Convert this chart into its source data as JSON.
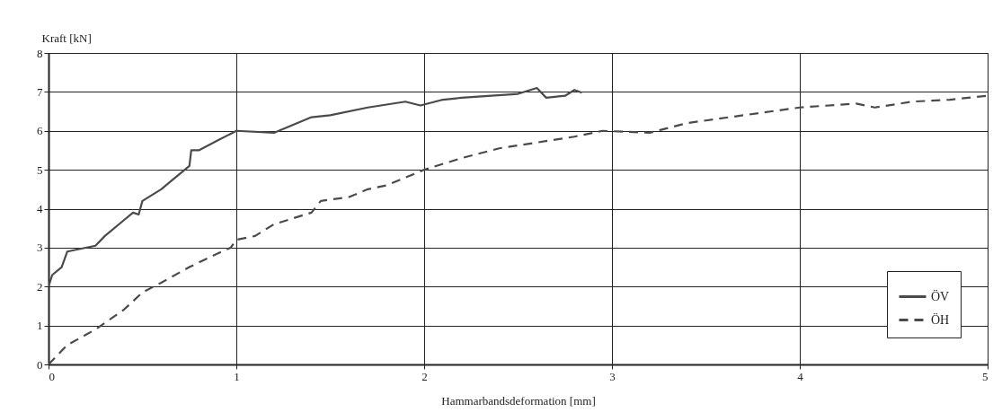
{
  "chart_data": {
    "type": "line",
    "xlabel": "Hammarbandsdeformation [mm]",
    "ylabel": "Kraft [kN]",
    "xlim": [
      0,
      5
    ],
    "xticks": [
      0,
      1,
      2,
      3,
      4,
      5
    ],
    "ylim": [
      0,
      8
    ],
    "yticks": [
      0,
      1,
      2,
      3,
      4,
      5,
      6,
      7,
      8
    ],
    "grid": true,
    "legend": "bottom right",
    "series": [
      {
        "name": "ÖV",
        "color": "#4a4a4a",
        "line_style": "solid",
        "x": [
          0,
          0.02,
          0.07,
          0.1,
          0.25,
          0.3,
          0.4,
          0.45,
          0.48,
          0.5,
          0.6,
          0.65,
          0.75,
          0.76,
          0.8,
          0.9,
          1.0,
          1.2,
          1.3,
          1.4,
          1.5,
          1.7,
          1.9,
          1.98,
          2.1,
          2.2,
          2.5,
          2.6,
          2.65,
          2.75,
          2.8,
          2.84
        ],
        "values": [
          2.0,
          2.3,
          2.5,
          2.9,
          3.05,
          3.3,
          3.7,
          3.9,
          3.85,
          4.2,
          4.5,
          4.7,
          5.1,
          5.5,
          5.5,
          5.75,
          6.0,
          5.95,
          6.15,
          6.35,
          6.4,
          6.6,
          6.75,
          6.65,
          6.8,
          6.85,
          6.95,
          7.1,
          6.85,
          6.9,
          7.05,
          6.98
        ]
      },
      {
        "name": "ÖH",
        "color": "#4a4a4a",
        "line_style": "dashed",
        "x": [
          0,
          0.1,
          0.25,
          0.4,
          0.5,
          0.6,
          0.75,
          0.9,
          0.97,
          1.0,
          1.1,
          1.2,
          1.4,
          1.45,
          1.6,
          1.7,
          1.8,
          2.0,
          2.2,
          2.4,
          2.6,
          2.8,
          2.95,
          3.2,
          3.4,
          3.7,
          4.0,
          4.3,
          4.4,
          4.6,
          4.8,
          5.0
        ],
        "values": [
          0,
          0.5,
          0.9,
          1.4,
          1.85,
          2.1,
          2.5,
          2.85,
          3.0,
          3.2,
          3.3,
          3.6,
          3.9,
          4.2,
          4.3,
          4.5,
          4.6,
          5.0,
          5.3,
          5.55,
          5.7,
          5.85,
          6.0,
          5.95,
          6.2,
          6.4,
          6.6,
          6.7,
          6.6,
          6.75,
          6.8,
          6.9
        ]
      }
    ]
  }
}
